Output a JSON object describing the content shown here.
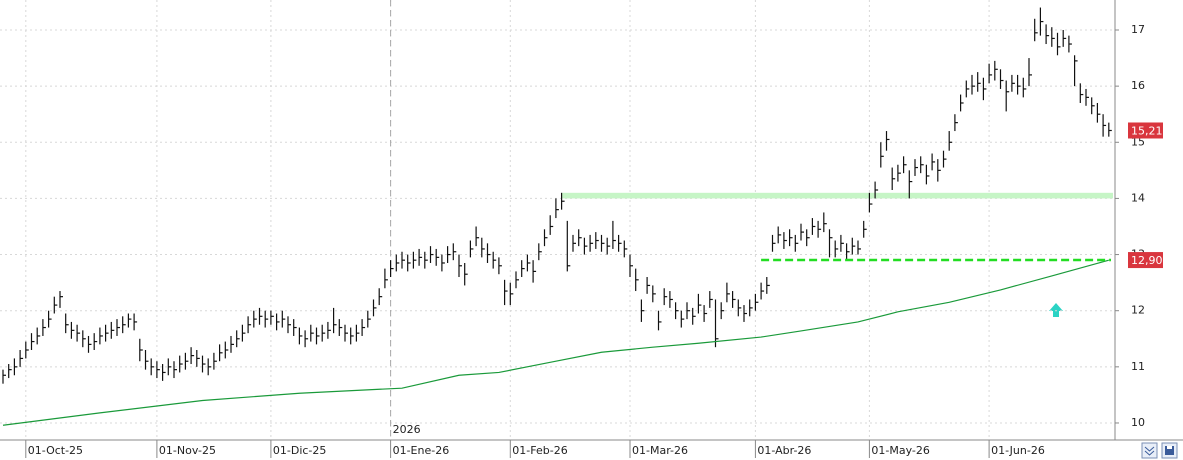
{
  "chart_data": {
    "type": "hlc",
    "bars": [
      [
        10.95,
        10.7,
        10.85
      ],
      [
        11.05,
        10.8,
        10.95
      ],
      [
        11.15,
        10.85,
        11.0
      ],
      [
        11.3,
        11.0,
        11.15
      ],
      [
        11.45,
        11.15,
        11.3
      ],
      [
        11.6,
        11.3,
        11.45
      ],
      [
        11.7,
        11.4,
        11.55
      ],
      [
        11.85,
        11.55,
        11.7
      ],
      [
        12.0,
        11.7,
        11.85
      ],
      [
        12.25,
        11.95,
        12.1
      ],
      [
        12.35,
        12.05,
        12.25
      ],
      [
        11.95,
        11.6,
        11.75
      ],
      [
        11.8,
        11.5,
        11.65
      ],
      [
        11.75,
        11.45,
        11.6
      ],
      [
        11.65,
        11.35,
        11.5
      ],
      [
        11.55,
        11.25,
        11.4
      ],
      [
        11.6,
        11.3,
        11.45
      ],
      [
        11.7,
        11.4,
        11.55
      ],
      [
        11.75,
        11.45,
        11.6
      ],
      [
        11.8,
        11.5,
        11.65
      ],
      [
        11.85,
        11.55,
        11.7
      ],
      [
        11.9,
        11.6,
        11.75
      ],
      [
        11.95,
        11.7,
        11.85
      ],
      [
        11.95,
        11.65,
        11.8
      ],
      [
        11.5,
        11.1,
        11.3
      ],
      [
        11.3,
        10.95,
        11.1
      ],
      [
        11.15,
        10.85,
        11.0
      ],
      [
        11.1,
        10.8,
        10.95
      ],
      [
        11.05,
        10.75,
        10.9
      ],
      [
        11.15,
        10.85,
        11.0
      ],
      [
        11.1,
        10.8,
        10.95
      ],
      [
        11.2,
        10.9,
        11.05
      ],
      [
        11.25,
        10.95,
        11.1
      ],
      [
        11.35,
        11.05,
        11.2
      ],
      [
        11.3,
        11.0,
        11.15
      ],
      [
        11.2,
        10.9,
        11.05
      ],
      [
        11.15,
        10.85,
        11.0
      ],
      [
        11.25,
        10.95,
        11.1
      ],
      [
        11.4,
        11.1,
        11.25
      ],
      [
        11.45,
        11.15,
        11.3
      ],
      [
        11.55,
        11.25,
        11.4
      ],
      [
        11.65,
        11.35,
        11.5
      ],
      [
        11.75,
        11.45,
        11.6
      ],
      [
        11.9,
        11.6,
        11.75
      ],
      [
        12.0,
        11.7,
        11.85
      ],
      [
        12.05,
        11.75,
        11.9
      ],
      [
        12.0,
        11.7,
        11.85
      ],
      [
        12.0,
        11.75,
        11.9
      ],
      [
        11.95,
        11.65,
        11.8
      ],
      [
        12.0,
        11.7,
        11.85
      ],
      [
        11.9,
        11.6,
        11.75
      ],
      [
        11.85,
        11.55,
        11.7
      ],
      [
        11.7,
        11.4,
        11.55
      ],
      [
        11.65,
        11.35,
        11.5
      ],
      [
        11.75,
        11.45,
        11.6
      ],
      [
        11.7,
        11.4,
        11.55
      ],
      [
        11.75,
        11.45,
        11.6
      ],
      [
        11.8,
        11.5,
        11.65
      ],
      [
        12.05,
        11.6,
        11.75
      ],
      [
        11.85,
        11.55,
        11.7
      ],
      [
        11.75,
        11.45,
        11.6
      ],
      [
        11.7,
        11.4,
        11.55
      ],
      [
        11.75,
        11.45,
        11.6
      ],
      [
        11.85,
        11.55,
        11.7
      ],
      [
        12.0,
        11.7,
        11.85
      ],
      [
        12.2,
        11.9,
        12.05
      ],
      [
        12.4,
        12.1,
        12.25
      ],
      [
        12.75,
        12.4,
        12.55
      ],
      [
        12.9,
        12.6,
        12.75
      ],
      [
        13.0,
        12.7,
        12.85
      ],
      [
        13.05,
        12.75,
        12.9
      ],
      [
        13.0,
        12.7,
        12.85
      ],
      [
        13.05,
        12.75,
        12.9
      ],
      [
        13.1,
        12.8,
        12.95
      ],
      [
        13.05,
        12.75,
        12.9
      ],
      [
        13.15,
        12.85,
        13.0
      ],
      [
        13.1,
        12.8,
        12.95
      ],
      [
        13.0,
        12.7,
        12.85
      ],
      [
        13.15,
        12.85,
        13.0
      ],
      [
        13.2,
        12.9,
        13.05
      ],
      [
        13.0,
        12.6,
        12.8
      ],
      [
        12.85,
        12.45,
        12.65
      ],
      [
        13.25,
        12.95,
        13.1
      ],
      [
        13.5,
        13.15,
        13.3
      ],
      [
        13.3,
        12.95,
        13.1
      ],
      [
        13.2,
        12.85,
        13.0
      ],
      [
        13.05,
        12.75,
        12.9
      ],
      [
        12.95,
        12.65,
        12.8
      ],
      [
        12.55,
        12.1,
        12.35
      ],
      [
        12.5,
        12.1,
        12.3
      ],
      [
        12.7,
        12.4,
        12.55
      ],
      [
        12.9,
        12.6,
        12.75
      ],
      [
        13.0,
        12.7,
        12.85
      ],
      [
        12.9,
        12.5,
        12.7
      ],
      [
        13.2,
        12.9,
        13.05
      ],
      [
        13.45,
        13.15,
        13.3
      ],
      [
        13.7,
        13.35,
        13.5
      ],
      [
        14.0,
        13.65,
        13.8
      ],
      [
        14.1,
        13.8,
        13.95
      ],
      [
        13.6,
        12.7,
        12.8
      ],
      [
        13.35,
        13.05,
        13.2
      ],
      [
        13.45,
        13.15,
        13.3
      ],
      [
        13.3,
        13.0,
        13.15
      ],
      [
        13.35,
        13.05,
        13.2
      ],
      [
        13.4,
        13.1,
        13.25
      ],
      [
        13.35,
        13.05,
        13.2
      ],
      [
        13.3,
        13.0,
        13.15
      ],
      [
        13.6,
        13.1,
        13.25
      ],
      [
        13.35,
        13.05,
        13.2
      ],
      [
        13.25,
        12.95,
        13.1
      ],
      [
        13.0,
        12.6,
        12.8
      ],
      [
        12.75,
        12.35,
        12.55
      ],
      [
        12.2,
        11.8,
        12.0
      ],
      [
        12.6,
        12.3,
        12.45
      ],
      [
        12.45,
        12.15,
        12.3
      ],
      [
        12.0,
        11.65,
        11.8
      ],
      [
        12.4,
        12.1,
        12.25
      ],
      [
        12.35,
        12.05,
        12.2
      ],
      [
        12.15,
        11.85,
        12.0
      ],
      [
        12.0,
        11.7,
        11.85
      ],
      [
        12.15,
        11.85,
        12.0
      ],
      [
        12.05,
        11.75,
        11.9
      ],
      [
        12.3,
        11.95,
        12.1
      ],
      [
        12.1,
        11.8,
        11.95
      ],
      [
        12.35,
        12.05,
        12.2
      ],
      [
        12.2,
        11.35,
        11.5
      ],
      [
        12.15,
        11.85,
        12.0
      ],
      [
        12.5,
        12.15,
        12.3
      ],
      [
        12.35,
        12.05,
        12.2
      ],
      [
        12.2,
        11.9,
        12.05
      ],
      [
        12.1,
        11.8,
        11.95
      ],
      [
        12.2,
        11.9,
        12.05
      ],
      [
        12.3,
        12.0,
        12.15
      ],
      [
        12.5,
        12.2,
        12.35
      ],
      [
        12.6,
        12.3,
        12.45
      ],
      [
        13.35,
        13.05,
        13.2
      ],
      [
        13.5,
        13.2,
        13.35
      ],
      [
        13.4,
        13.1,
        13.25
      ],
      [
        13.45,
        13.15,
        13.3
      ],
      [
        13.35,
        13.05,
        13.2
      ],
      [
        13.55,
        13.25,
        13.4
      ],
      [
        13.45,
        13.15,
        13.3
      ],
      [
        13.65,
        13.35,
        13.5
      ],
      [
        13.6,
        13.3,
        13.45
      ],
      [
        13.75,
        13.4,
        13.55
      ],
      [
        13.45,
        12.95,
        13.3
      ],
      [
        13.25,
        12.95,
        13.1
      ],
      [
        13.35,
        13.05,
        13.2
      ],
      [
        13.2,
        12.9,
        13.05
      ],
      [
        13.3,
        13.0,
        13.15
      ],
      [
        13.25,
        13.0,
        13.1
      ],
      [
        13.6,
        13.3,
        13.45
      ],
      [
        14.1,
        13.75,
        13.9
      ],
      [
        14.3,
        14.0,
        14.15
      ],
      [
        15.0,
        14.55,
        14.75
      ],
      [
        15.2,
        14.85,
        15.05
      ],
      [
        14.55,
        14.15,
        14.35
      ],
      [
        14.6,
        14.3,
        14.45
      ],
      [
        14.75,
        14.45,
        14.6
      ],
      [
        14.5,
        14.0,
        14.3
      ],
      [
        14.7,
        14.4,
        14.55
      ],
      [
        14.75,
        14.45,
        14.6
      ],
      [
        14.6,
        14.25,
        14.4
      ],
      [
        14.8,
        14.5,
        14.65
      ],
      [
        14.7,
        14.3,
        14.5
      ],
      [
        14.85,
        14.55,
        14.7
      ],
      [
        15.2,
        14.85,
        15.0
      ],
      [
        15.5,
        15.2,
        15.35
      ],
      [
        15.85,
        15.55,
        15.7
      ],
      [
        16.1,
        15.8,
        15.95
      ],
      [
        16.2,
        15.85,
        16.0
      ],
      [
        16.25,
        15.9,
        16.05
      ],
      [
        16.15,
        15.75,
        15.95
      ],
      [
        16.4,
        16.05,
        16.2
      ],
      [
        16.45,
        16.1,
        16.3
      ],
      [
        16.3,
        15.95,
        16.1
      ],
      [
        16.1,
        15.55,
        15.9
      ],
      [
        16.2,
        15.9,
        16.05
      ],
      [
        16.2,
        15.85,
        16.0
      ],
      [
        16.15,
        15.8,
        15.95
      ],
      [
        16.5,
        16.0,
        16.2
      ],
      [
        17.2,
        16.8,
        16.95
      ],
      [
        17.4,
        16.9,
        17.15
      ],
      [
        17.1,
        16.75,
        16.9
      ],
      [
        17.05,
        16.7,
        16.85
      ],
      [
        16.95,
        16.55,
        16.7
      ],
      [
        17.0,
        16.7,
        16.85
      ],
      [
        16.9,
        16.6,
        16.75
      ],
      [
        16.55,
        16.0,
        16.45
      ],
      [
        16.05,
        15.7,
        15.85
      ],
      [
        15.95,
        15.65,
        15.8
      ],
      [
        15.8,
        15.5,
        15.65
      ],
      [
        15.7,
        15.35,
        15.5
      ],
      [
        15.5,
        15.1,
        15.3
      ],
      [
        15.35,
        15.1,
        15.21
      ]
    ],
    "xticks": [
      {
        "value": 4,
        "label": "01-Oct-25"
      },
      {
        "value": 27,
        "label": "01-Nov-25"
      },
      {
        "value": 47,
        "label": "01-Dic-25"
      },
      {
        "value": 68,
        "label": "01-Ene-26"
      },
      {
        "value": 89,
        "label": "01-Feb-26"
      },
      {
        "value": 110,
        "label": "01-Mar-26"
      },
      {
        "value": 132,
        "label": "01-Abr-26"
      },
      {
        "value": 152,
        "label": "01-May-26"
      },
      {
        "value": 173,
        "label": "01-Jun-26"
      }
    ],
    "year_marker": {
      "x": 68,
      "label": "2026"
    },
    "ylim": [
      9.8,
      17.55
    ],
    "yticks": [
      10,
      11,
      12,
      13,
      14,
      15,
      16,
      17
    ],
    "grid": true,
    "ma": {
      "color": "#1a9a3a",
      "x": [
        0,
        17,
        35,
        52,
        70,
        80,
        87,
        96,
        105,
        114,
        122,
        133,
        140,
        150,
        157,
        166,
        175,
        184,
        194
      ],
      "values": [
        9.96,
        10.18,
        10.4,
        10.53,
        10.62,
        10.85,
        10.9,
        11.08,
        11.26,
        11.35,
        11.42,
        11.53,
        11.64,
        11.8,
        11.98,
        12.15,
        12.37,
        12.62,
        12.9
      ]
    },
    "resistance_band": {
      "ylim": [
        14.0,
        14.1
      ],
      "x_start": 98,
      "color": "#c6f5c6"
    },
    "support_line": {
      "value": 12.902,
      "label": "12,902",
      "x_start": 133,
      "color": "#22dd22"
    },
    "last_price": {
      "value": 15.21,
      "label": "15,21"
    }
  }
}
